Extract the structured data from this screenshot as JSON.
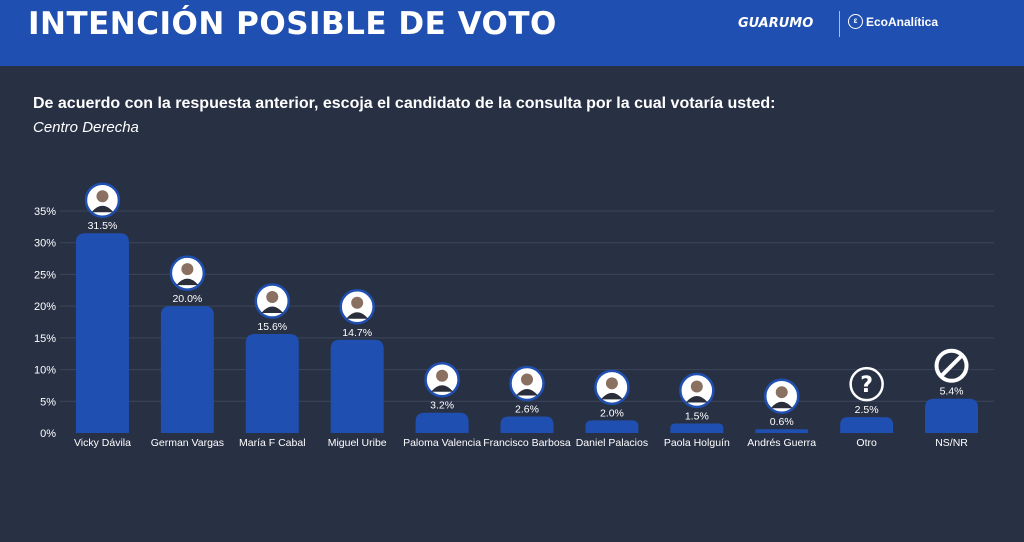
{
  "header": {
    "title": "INTENCIÓN POSIBLE DE VOTO",
    "brand_primary": "GUARUMO",
    "brand_secondary": "EcoAnalítica",
    "brand_secondary_icon": "ecoanalitica-logo-icon"
  },
  "question": {
    "text": "De acuerdo con  la respuesta anterior, escoja el candidato de la consulta por la cual votaría usted:",
    "subtext": "Centro Derecha"
  },
  "chart_data": {
    "type": "bar",
    "categories": [
      "Vicky Dávila",
      "German Vargas",
      "María F Cabal",
      "Miguel Uribe",
      "Paloma Valencia",
      "Francisco Barbosa",
      "Daniel Palacios",
      "Paola Holguín",
      "Andrés Guerra",
      "Otro",
      "NS/NR"
    ],
    "values": [
      31.5,
      20.0,
      15.6,
      14.7,
      3.2,
      2.6,
      2.0,
      1.5,
      0.6,
      2.5,
      5.4
    ],
    "value_labels": [
      "31.5%",
      "20.0%",
      "15.6%",
      "14.7%",
      "3.2%",
      "2.6%",
      "2.0%",
      "1.5%",
      "0.6%",
      "2.5%",
      "5.4%"
    ],
    "yticks": [
      0,
      5,
      10,
      15,
      20,
      25,
      30,
      35
    ],
    "ytick_labels": [
      "0%",
      "5%",
      "10%",
      "15%",
      "20%",
      "25%",
      "30%",
      "35%"
    ],
    "ylim": [
      0,
      35
    ],
    "grid": true,
    "bar_color": "#1f4fb0",
    "icons": [
      "candidate-photo-icon",
      "candidate-photo-icon",
      "candidate-photo-icon",
      "candidate-photo-icon",
      "candidate-photo-icon",
      "candidate-photo-icon",
      "candidate-photo-icon",
      "candidate-photo-icon",
      "candidate-photo-icon",
      "question-mark-icon",
      "no-response-icon"
    ]
  },
  "colors": {
    "background": "#283044",
    "header": "#1f4fb0",
    "bar": "#1f4fb0",
    "grid": "#3c455b",
    "text": "#ffffff"
  }
}
